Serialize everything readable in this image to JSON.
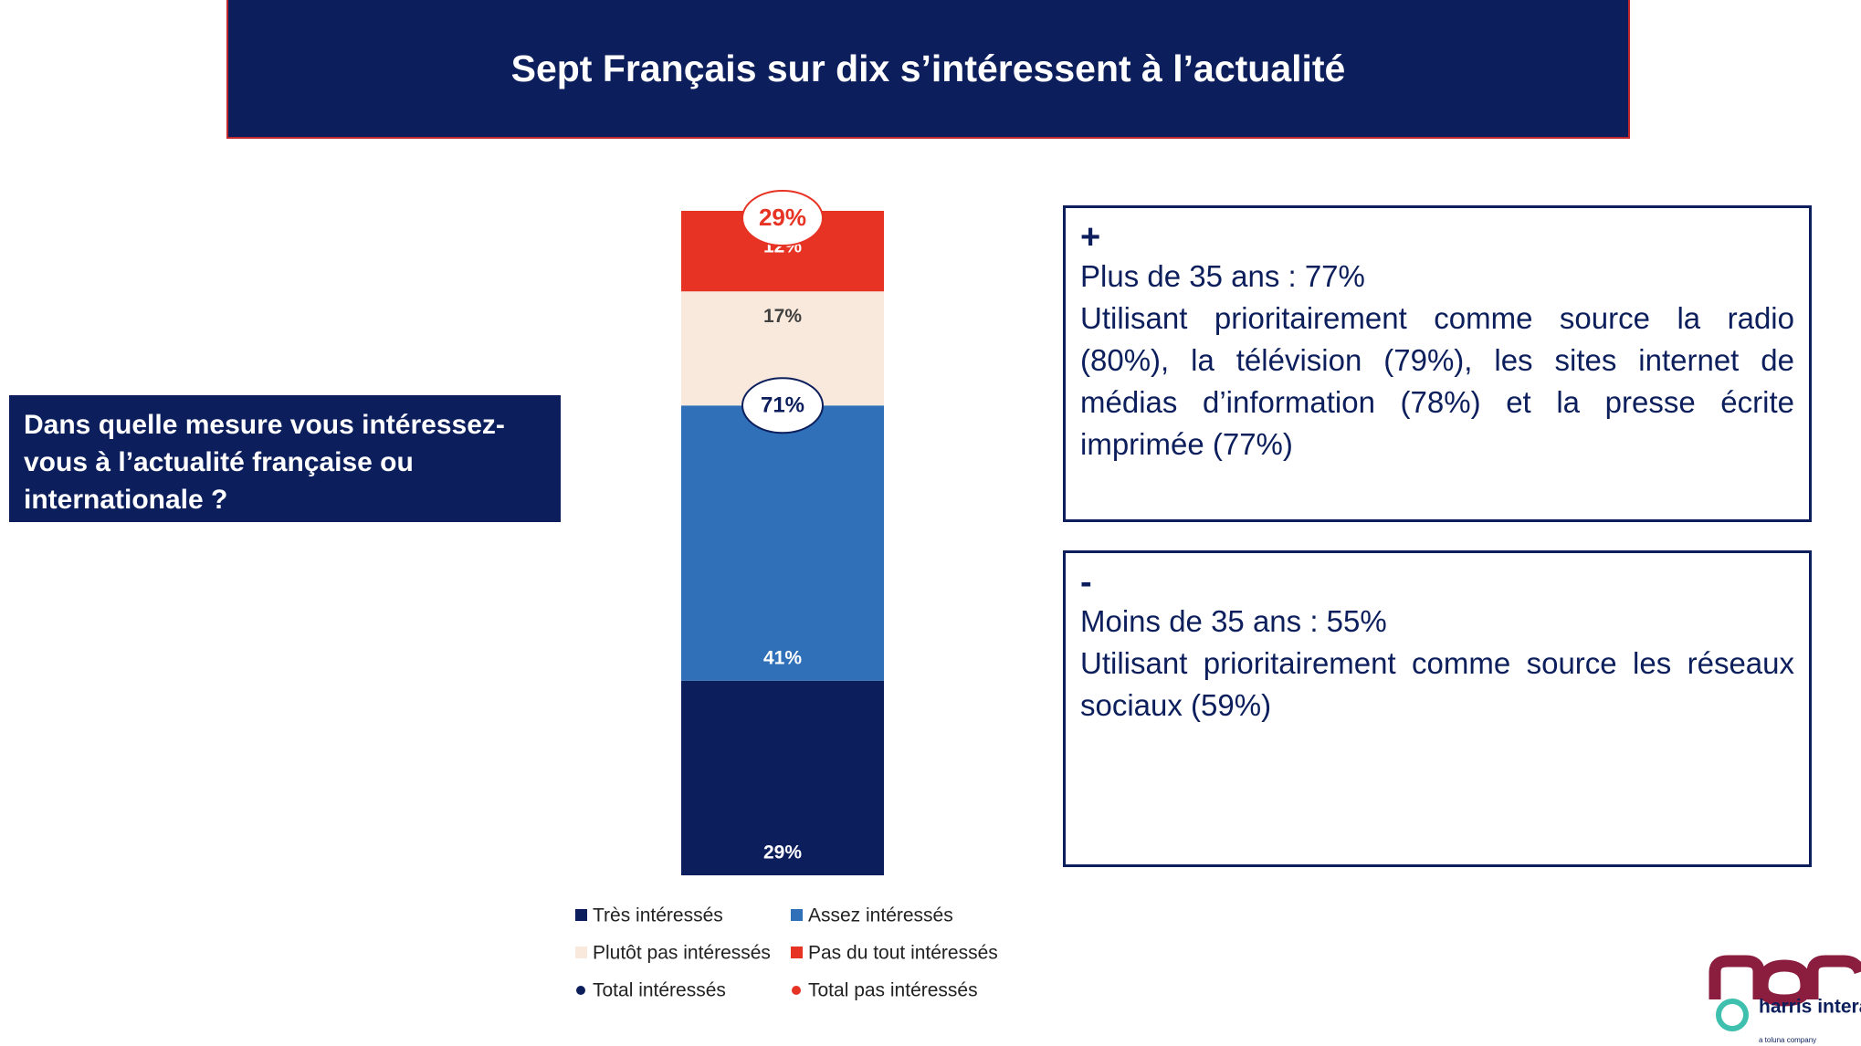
{
  "title": "Sept Français sur dix s’intéressent à l’actualité",
  "question": "Dans quelle mesure vous intéressez-vous à l’actualité française ou internationale ?",
  "chart_data": {
    "type": "stacked-bar",
    "series": [
      {
        "name": "Très intéressés",
        "color": "#0c1f5c",
        "label_color": "#ffffff",
        "values": [
          29
        ],
        "value_labels": [
          "29%"
        ]
      },
      {
        "name": "Assez intéressés",
        "color": "#3070b8",
        "label_color": "#ffffff",
        "values": [
          41
        ],
        "value_labels": [
          "41%"
        ]
      },
      {
        "name": "Plutôt pas intéressés",
        "color": "#f9e8dc",
        "label_color": "#404040",
        "values": [
          17
        ],
        "value_labels": [
          "17%"
        ]
      },
      {
        "name": "Pas du tout intéressés",
        "color": "#e63323",
        "label_color": "#ffffff",
        "values": [
          12
        ],
        "value_labels": [
          "12%"
        ]
      }
    ],
    "totals": [
      {
        "name": "Total intéressés",
        "color": "#0c1f5c",
        "values": [
          71
        ],
        "value_labels": [
          "71%"
        ]
      },
      {
        "name": "Total pas intéressés",
        "color": "#e63323",
        "values": [
          29
        ],
        "value_labels": [
          "29%"
        ]
      }
    ]
  },
  "panels": [
    {
      "sign": "+",
      "headline": "Plus de 35 ans : 77%",
      "text": "Utilisant prioritairement comme source la radio (80%), la télévision (79%), les sites internet de médias d’information (78%) et la presse écrite imprimée (77%)"
    },
    {
      "sign": "-",
      "headline": "Moins de 35 ans : 55%",
      "text": "Utilisant prioritairement comme source les réseaux sociaux (59%)"
    }
  ],
  "logo": {
    "name": "harris interactive",
    "tagline": "a toluna company"
  }
}
